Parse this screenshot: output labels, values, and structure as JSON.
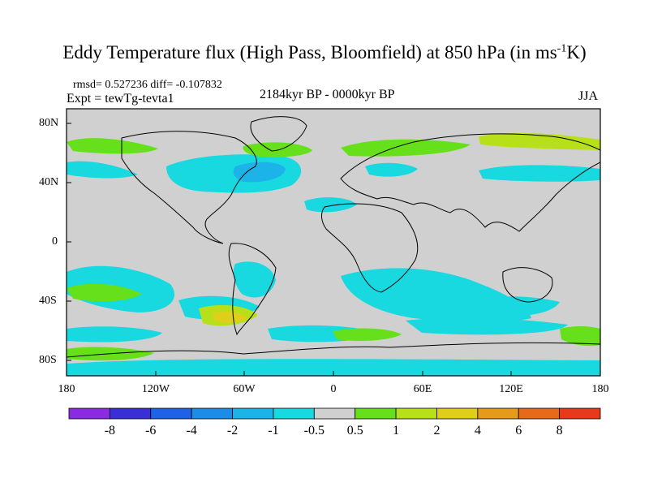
{
  "title": {
    "main": "Eddy Temperature flux (High Pass, Bloomfield) at 850 hPa (in ms",
    "superscript": "-1",
    "unit_tail": "K)"
  },
  "stats": "rmsd= 0.527236 diff= -0.107832",
  "expt": "Expt = tewTg-tevta1",
  "period": "2184kyr BP - 0000kyr BP",
  "season": "JJA",
  "axes": {
    "lat_labels": [
      "80N",
      "40N",
      "0",
      "40S",
      "80S"
    ],
    "lon_labels": [
      "180",
      "120W",
      "60W",
      "0",
      "60E",
      "120E",
      "180"
    ]
  },
  "colorbar": {
    "labels": [
      "-8",
      "-6",
      "-4",
      "-2",
      "-1",
      "-0.5",
      "0.5",
      "1",
      "2",
      "4",
      "6",
      "8"
    ],
    "colors": [
      "#8a2be2",
      "#3a2fd6",
      "#1e63e6",
      "#1b8de8",
      "#1cb4e8",
      "#18d8e0",
      "#d0d0d0",
      "#66e01a",
      "#b8e01a",
      "#e0cf1a",
      "#e69a1a",
      "#e66a1a",
      "#e63a1a"
    ]
  }
}
